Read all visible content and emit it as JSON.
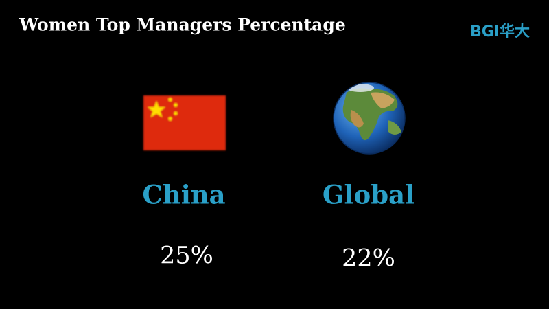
{
  "header": {
    "title": "Women Top Managers Percentage",
    "logo": "BGI华大"
  },
  "items": [
    {
      "label": "China",
      "value": "25%"
    },
    {
      "label": "Global",
      "value": "22%"
    }
  ]
}
